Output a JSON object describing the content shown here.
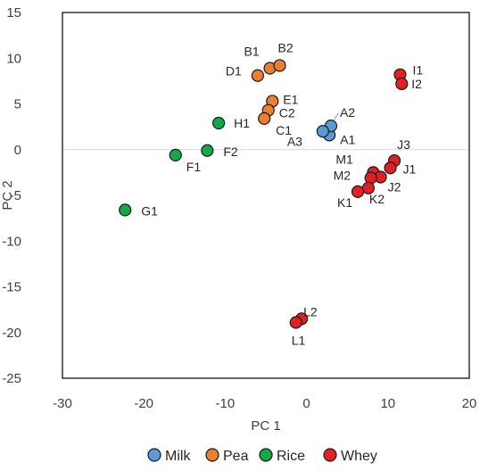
{
  "chart_data": {
    "type": "scatter",
    "xlabel": "PC 1",
    "ylabel": "PC 2",
    "xlim": [
      -30,
      20
    ],
    "ylim": [
      -25,
      15
    ],
    "x_ticks": [
      -30,
      -20,
      -10,
      0,
      10,
      20
    ],
    "y_ticks": [
      15,
      10,
      5,
      0,
      -5,
      -10,
      -15,
      -20,
      -25
    ],
    "grid": false,
    "legend": "bottom",
    "series": [
      {
        "name": "Milk",
        "color": "#5b9bd5",
        "points": [
          {
            "label": "A1",
            "x": 2.8,
            "y": 1.6
          },
          {
            "label": "A2",
            "x": 3.0,
            "y": 2.6
          },
          {
            "label": "A3",
            "x": 2.0,
            "y": 2.0
          }
        ]
      },
      {
        "name": "Pea",
        "color": "#ed7d31",
        "points": [
          {
            "label": "B1",
            "x": -4.5,
            "y": 8.9
          },
          {
            "label": "B2",
            "x": -3.3,
            "y": 9.2
          },
          {
            "label": "D1",
            "x": -6.0,
            "y": 8.1
          },
          {
            "label": "E1",
            "x": -4.2,
            "y": 5.3
          },
          {
            "label": "C2",
            "x": -4.7,
            "y": 4.3
          },
          {
            "label": "C1",
            "x": -5.2,
            "y": 3.4
          }
        ]
      },
      {
        "name": "Rice",
        "color": "#13a84a",
        "points": [
          {
            "label": "H1",
            "x": -10.8,
            "y": 2.9
          },
          {
            "label": "F2",
            "x": -12.2,
            "y": -0.1
          },
          {
            "label": "F1",
            "x": -16.1,
            "y": -0.6
          },
          {
            "label": "G1",
            "x": -22.3,
            "y": -6.6
          }
        ]
      },
      {
        "name": "Whey",
        "color": "#e02025",
        "points": [
          {
            "label": "I1",
            "x": 11.5,
            "y": 8.2
          },
          {
            "label": "I2",
            "x": 11.7,
            "y": 7.2
          },
          {
            "label": "J3",
            "x": 10.8,
            "y": -1.2
          },
          {
            "label": "J1",
            "x": 10.3,
            "y": -2.0
          },
          {
            "label": "M1",
            "x": 8.2,
            "y": -2.5
          },
          {
            "label": "J2",
            "x": 9.1,
            "y": -3.0
          },
          {
            "label": "M2",
            "x": 7.9,
            "y": -3.1
          },
          {
            "label": "K2",
            "x": 7.6,
            "y": -4.2
          },
          {
            "label": "K1",
            "x": 6.3,
            "y": -4.6
          },
          {
            "label": "L2",
            "x": -0.6,
            "y": -18.5
          },
          {
            "label": "L1",
            "x": -1.3,
            "y": -18.9
          }
        ]
      }
    ]
  }
}
